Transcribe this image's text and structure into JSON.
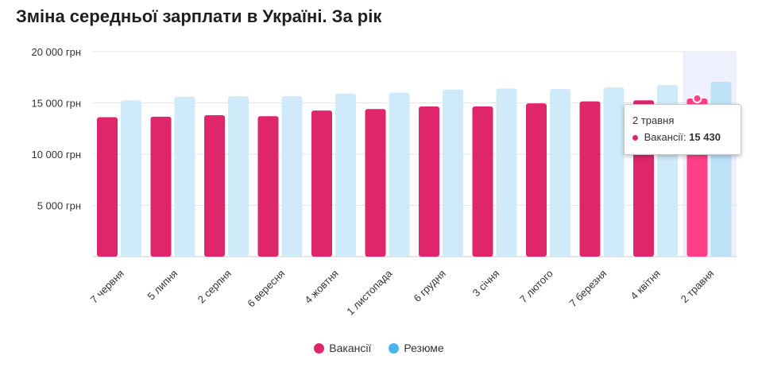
{
  "title": "Зміна середньої зарплати в Україні. За рік",
  "colors": {
    "vacancies": "#e0266b",
    "vacancies_highlight": "#ff3f87",
    "resumes": "#cfeaf8",
    "resumes_highlight": "#bde2f7",
    "legend_resumes": "#4ab3ef",
    "highlight_band": "#eef1fd",
    "grid": "#e6e6e6"
  },
  "chart_data": {
    "type": "bar",
    "title": "Зміна середньої зарплати в Україні. За рік",
    "categories": [
      "7 червня",
      "5 липня",
      "2 серпня",
      "6 вересня",
      "4 жовтня",
      "1 листопада",
      "6 грудня",
      "3 січня",
      "7 лютого",
      "7 березня",
      "4 квітня",
      "2 травня"
    ],
    "series": [
      {
        "name": "Вакансії",
        "values": [
          13600,
          13650,
          13800,
          13700,
          14250,
          14400,
          14650,
          14650,
          14950,
          15150,
          15250,
          15430
        ]
      },
      {
        "name": "Резюме",
        "values": [
          15250,
          15600,
          15650,
          15650,
          15900,
          16000,
          16300,
          16400,
          16350,
          16500,
          16750,
          17050
        ]
      }
    ],
    "yticks": [
      "20 000 грн",
      "15 000 грн",
      "10 000 грн",
      "5 000 грн"
    ],
    "ytick_values": [
      20000,
      15000,
      10000,
      5000
    ],
    "ylim": [
      0,
      20000
    ],
    "grid": true,
    "legend": "bottom-center",
    "highlighted_category": "2 травня"
  },
  "legend": {
    "vacancies": "Вакансії",
    "resumes": "Резюме"
  },
  "tooltip": {
    "date": "2 травня",
    "label": "Вакансії:",
    "value": "15 430"
  }
}
